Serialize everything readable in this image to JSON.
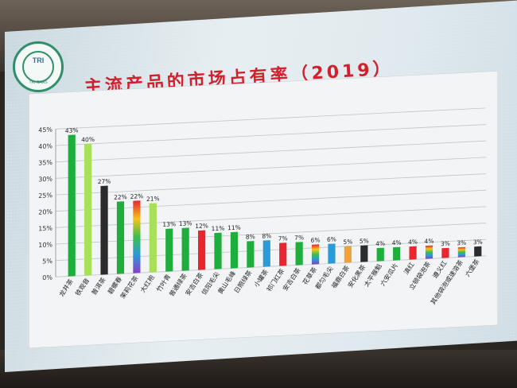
{
  "title": "主流产品的市场占有率（2019）",
  "logo": {
    "text": "TRI",
    "caption": "TRI CAAS"
  },
  "chart_data": {
    "type": "bar",
    "title": "主流产品的市场占有率（2019）",
    "xlabel": "",
    "ylabel": "",
    "ylim": [
      0,
      45
    ],
    "yticks": [
      "0%",
      "5%",
      "10%",
      "15%",
      "20%",
      "25%",
      "30%",
      "35%",
      "40%",
      "45%"
    ],
    "grid": true,
    "categories": [
      "龙井茶",
      "铁观音",
      "普洱茶",
      "碧螺春",
      "茉莉花茶",
      "大红袍",
      "竹叶青",
      "普通绿茶",
      "安吉白茶",
      "信阳毛尖",
      "黄山毛峰",
      "日照绿茶",
      "小罐茶",
      "祁门红茶",
      "安吉白茶",
      "花草茶",
      "都匀毛尖",
      "福鼎白茶",
      "安化黑茶",
      "太平猴魁",
      "六安瓜片",
      "滇红",
      "立顿袋泡茶",
      "遵义红",
      "其他袋泡或速溶茶",
      "六堡茶"
    ],
    "values": [
      43,
      40,
      27,
      22,
      22,
      21,
      13,
      13,
      12,
      11,
      11,
      8,
      8,
      7,
      7,
      6,
      6,
      5,
      5,
      4,
      4,
      4,
      4,
      3,
      3,
      3
    ],
    "labels": [
      "43%",
      "40%",
      "27%",
      "22%",
      "22%",
      "21%",
      "13%",
      "13%",
      "12%",
      "11%",
      "11%",
      "8%",
      "8%",
      "7%",
      "7%",
      "6%",
      "6%",
      "5%",
      "5%",
      "4%",
      "4%",
      "4%",
      "4%",
      "3%",
      "3%",
      "3%"
    ],
    "colors": [
      "#1fae3c",
      "#a8e05a",
      "#2b2b2b",
      "#1fae3c",
      "rainbow",
      "#a8e05a",
      "#1fae3c",
      "#1fae3c",
      "#e8262f",
      "#1fae3c",
      "#1fae3c",
      "#1fae3c",
      "#2a9ad8",
      "#e8262f",
      "#1fae3c",
      "rainbow",
      "#2a9ad8",
      "#f0a23a",
      "#2b2b2b",
      "#1fae3c",
      "#1fae3c",
      "#e8262f",
      "rainbow",
      "#e8262f",
      "rainbow",
      "#2b2b2b"
    ]
  }
}
